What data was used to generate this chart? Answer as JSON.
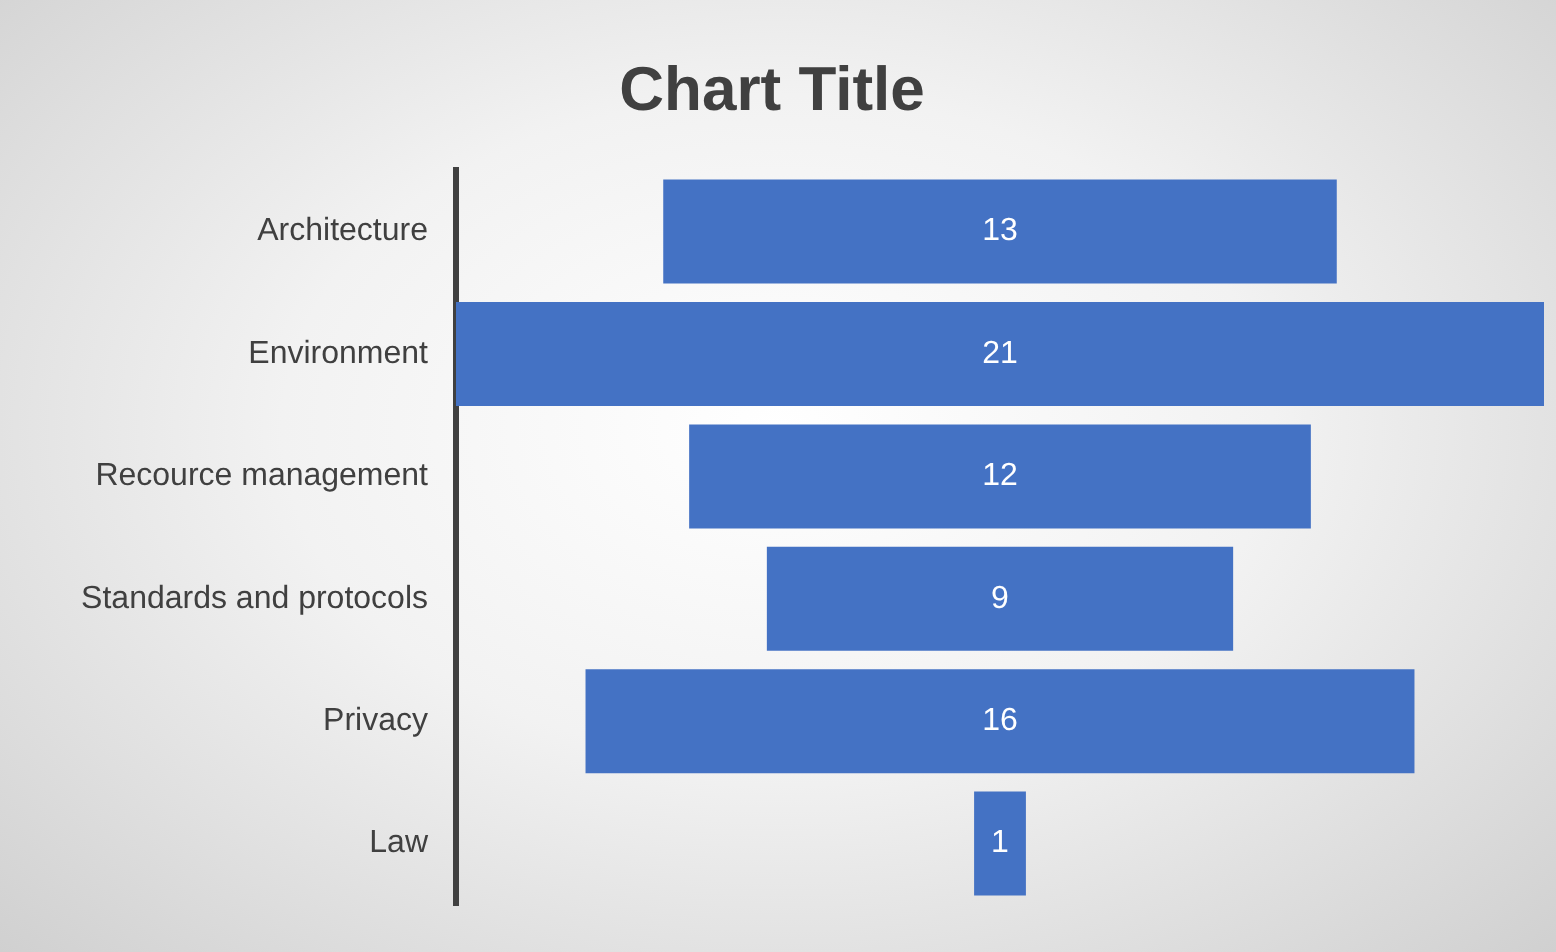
{
  "chart_data": {
    "type": "other",
    "title": "Chart Title",
    "categories": [
      "Architecture",
      "Environment",
      "Recource management",
      "Standards and protocols",
      "Privacy",
      "Law"
    ],
    "values": [
      13,
      21,
      12,
      9,
      16,
      1
    ],
    "color": "#4472c4",
    "data_labels": true,
    "legend": false
  }
}
